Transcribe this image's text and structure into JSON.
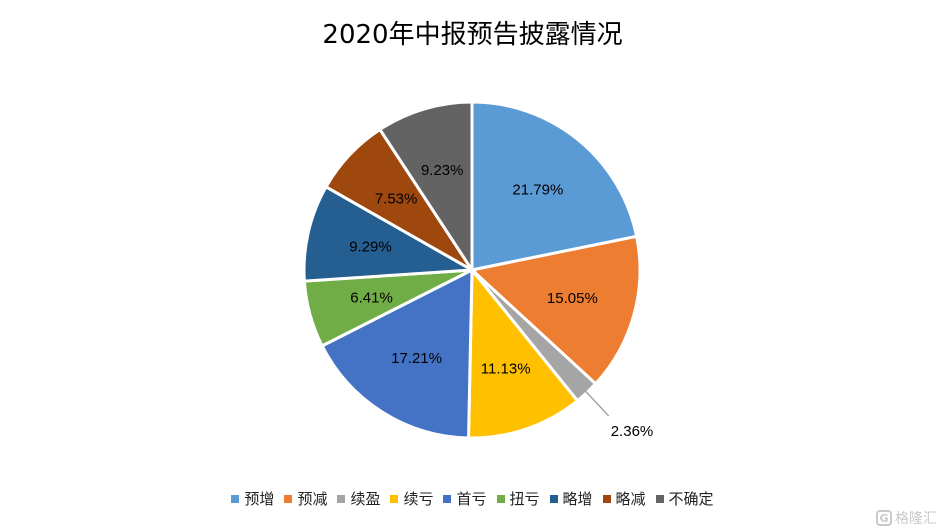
{
  "chart_data": {
    "type": "pie",
    "title": "2020年中报预告披露情况",
    "slices": [
      {
        "label": "预增",
        "value": 21.79,
        "value_label": "21.79%",
        "color": "#5B9BD5"
      },
      {
        "label": "预减",
        "value": 15.05,
        "value_label": "15.05%",
        "color": "#ED7D31"
      },
      {
        "label": "续盈",
        "value": 2.36,
        "value_label": "2.36%",
        "color": "#A5A5A5"
      },
      {
        "label": "续亏",
        "value": 11.13,
        "value_label": "11.13%",
        "color": "#FFC000"
      },
      {
        "label": "首亏",
        "value": 17.21,
        "value_label": "17.21%",
        "color": "#4472C4"
      },
      {
        "label": "扭亏",
        "value": 6.41,
        "value_label": "6.41%",
        "color": "#70AD47"
      },
      {
        "label": "略增",
        "value": 9.29,
        "value_label": "9.29%",
        "color": "#255E91"
      },
      {
        "label": "略减",
        "value": 7.53,
        "value_label": "7.53%",
        "color": "#9E480E"
      },
      {
        "label": "不确定",
        "value": 9.23,
        "value_label": "9.23%",
        "color": "#636363"
      }
    ],
    "legend_position": "bottom"
  },
  "watermark": {
    "text": "格隆汇",
    "icon": "G"
  }
}
